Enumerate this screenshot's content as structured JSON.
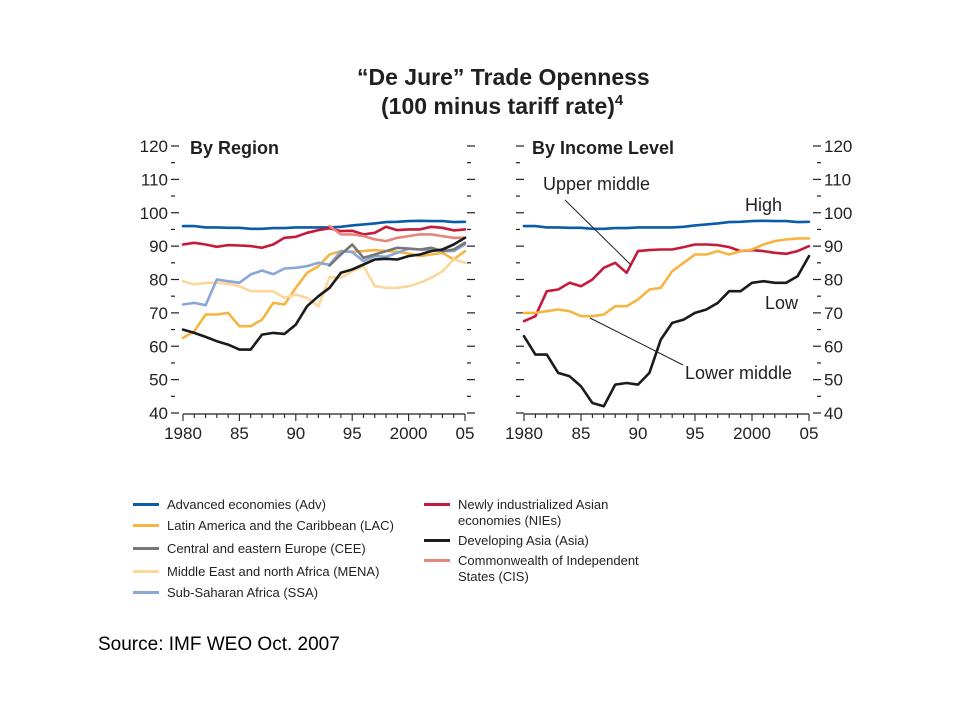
{
  "title": {
    "line1": "“De Jure” Trade Openness",
    "line2": "(100 minus tariff rate)",
    "footnote_mark": "4"
  },
  "source": "Source: IMF WEO Oct. 2007",
  "colors": {
    "adv": "#0b5ca8",
    "lac": "#f6b442",
    "cee": "#777777",
    "mena": "#fbd79b",
    "ssa": "#8aa6d6",
    "nies": "#c51a3a",
    "asia": "#1b1b1b",
    "cis": "#e6857a",
    "high": "#0b5ca8",
    "upper_middle": "#c51a3a",
    "lower_middle": "#f6b442",
    "low": "#1b1b1b"
  },
  "chart_data": [
    {
      "type": "line",
      "title": "By Region",
      "ylim": [
        40,
        120
      ],
      "xlim": [
        1980,
        2005
      ],
      "yticks": [
        "40",
        "50",
        "60",
        "70",
        "80",
        "90",
        "100",
        "110",
        "120"
      ],
      "xticks": [
        "1980",
        "85",
        "90",
        "95",
        "2000",
        "05"
      ],
      "x": [
        1980,
        1981,
        1982,
        1983,
        1984,
        1985,
        1986,
        1987,
        1988,
        1989,
        1990,
        1991,
        1992,
        1993,
        1994,
        1995,
        1996,
        1997,
        1998,
        1999,
        2000,
        2001,
        2002,
        2003,
        2004,
        2005
      ],
      "series": [
        {
          "key": "adv",
          "name": "Advanced economies (Adv)",
          "values": [
            96,
            96,
            95.6,
            95.6,
            95.5,
            95.5,
            95.2,
            95.2,
            95.4,
            95.4,
            95.6,
            95.6,
            95.6,
            95.6,
            95.8,
            96.2,
            96.5,
            96.8,
            97.2,
            97.3,
            97.5,
            97.6,
            97.5,
            97.5,
            97.2,
            97.3
          ]
        },
        {
          "key": "nies",
          "name": "Newly industrialized Asian economies (NIEs)",
          "values": [
            90.5,
            91,
            90.5,
            89.8,
            90.3,
            90.2,
            90,
            89.5,
            90.5,
            92.5,
            92.8,
            94,
            94.8,
            95.3,
            94.5,
            94.6,
            93.5,
            94,
            95.8,
            94.8,
            95,
            95,
            95.8,
            95.5,
            94.7,
            95
          ]
        },
        {
          "key": "lac",
          "name": "Latin America and the Caribbean (LAC)",
          "values": [
            62.5,
            64.5,
            69.5,
            69.5,
            70,
            66,
            66,
            68,
            73,
            72.5,
            77.5,
            82,
            84,
            87.5,
            88.5,
            88.3,
            88.5,
            88.8,
            88.5,
            88.3,
            87.8,
            87,
            87.5,
            88,
            86,
            88.5
          ]
        },
        {
          "key": "mena",
          "name": "Middle East and north Africa (MENA)",
          "values": [
            79.5,
            78.5,
            79,
            79,
            78.7,
            78,
            76.5,
            76.5,
            76.5,
            74.5,
            75.5,
            74.5,
            72,
            80.7,
            80.5,
            82.5,
            84,
            78,
            77.5,
            77.5,
            78,
            79,
            80.5,
            82.5,
            86,
            85
          ]
        },
        {
          "key": "ssa",
          "name": "Sub-Saharan Africa (SSA)",
          "values": [
            72.5,
            73,
            72.3,
            80,
            79.5,
            79,
            81.5,
            82.7,
            81.6,
            83.3,
            83.5,
            84,
            85,
            84.4,
            88.5,
            88.2,
            85.5,
            87,
            86.8,
            88,
            89.2,
            89,
            88.8,
            88.5,
            88.5,
            90.5
          ]
        },
        {
          "key": "cee",
          "name": "Central and eastern Europe (CEE)",
          "values": [
            null,
            null,
            null,
            null,
            null,
            null,
            null,
            null,
            null,
            null,
            null,
            null,
            null,
            84.2,
            87.5,
            90.5,
            86.5,
            87.5,
            88.5,
            89.5,
            89.3,
            89,
            89.5,
            88.5,
            89,
            91
          ]
        },
        {
          "key": "cis",
          "name": "Commonwealth of Independent States (CIS)",
          "values": [
            null,
            null,
            null,
            null,
            null,
            null,
            null,
            null,
            null,
            null,
            null,
            null,
            null,
            96,
            93.5,
            93.5,
            93,
            92,
            91.5,
            92.5,
            93,
            93.5,
            93.5,
            93,
            92.5,
            92.5
          ]
        },
        {
          "key": "asia",
          "name": "Developing Asia (Asia)",
          "values": [
            65,
            64,
            62.8,
            61.5,
            60.5,
            59,
            59,
            63.5,
            64,
            63.7,
            66.5,
            72,
            75,
            77.5,
            82,
            83,
            84.5,
            86,
            86.2,
            86,
            87,
            87.5,
            88.5,
            89,
            90.5,
            92.5
          ]
        }
      ]
    },
    {
      "type": "line",
      "title": "By Income Level",
      "ylim": [
        40,
        120
      ],
      "xlim": [
        1980,
        2005
      ],
      "yticks": [
        "40",
        "50",
        "60",
        "70",
        "80",
        "90",
        "100",
        "110",
        "120"
      ],
      "xticks": [
        "1980",
        "85",
        "90",
        "95",
        "2000",
        "05"
      ],
      "x": [
        1980,
        1981,
        1982,
        1983,
        1984,
        1985,
        1986,
        1987,
        1988,
        1989,
        1990,
        1991,
        1992,
        1993,
        1994,
        1995,
        1996,
        1997,
        1998,
        1999,
        2000,
        2001,
        2002,
        2003,
        2004,
        2005
      ],
      "series": [
        {
          "key": "high",
          "name": "High",
          "values": [
            96,
            96,
            95.6,
            95.6,
            95.5,
            95.5,
            95.2,
            95.2,
            95.4,
            95.4,
            95.6,
            95.6,
            95.6,
            95.6,
            95.8,
            96.2,
            96.5,
            96.8,
            97.2,
            97.3,
            97.5,
            97.6,
            97.5,
            97.5,
            97.2,
            97.3
          ]
        },
        {
          "key": "upper_middle",
          "name": "Upper middle",
          "values": [
            67.5,
            69,
            76.5,
            77,
            79,
            78,
            80,
            83.5,
            85,
            82,
            88.5,
            88.8,
            89,
            89,
            89.7,
            90.5,
            90.5,
            90.3,
            89.7,
            88.5,
            88.8,
            88.5,
            88,
            87.7,
            88.5,
            90
          ]
        },
        {
          "key": "lower_middle",
          "name": "Lower middle",
          "values": [
            70,
            70,
            70.5,
            71,
            70.5,
            69,
            69,
            69.5,
            72,
            72,
            74,
            77,
            77.5,
            82.5,
            85,
            87.5,
            87.5,
            88.5,
            87.5,
            88.5,
            89,
            90.5,
            91.5,
            92,
            92.3,
            92.3
          ]
        },
        {
          "key": "low",
          "name": "Low",
          "values": [
            63,
            57.5,
            57.5,
            52,
            51,
            48,
            43,
            42,
            48.5,
            49,
            48.5,
            52,
            62,
            67,
            68,
            70,
            71,
            73,
            76.5,
            76.5,
            79,
            79.5,
            79,
            79,
            81,
            87
          ]
        }
      ],
      "annotations": [
        "Upper middle",
        "High",
        "Low",
        "Lower middle"
      ]
    }
  ]
}
